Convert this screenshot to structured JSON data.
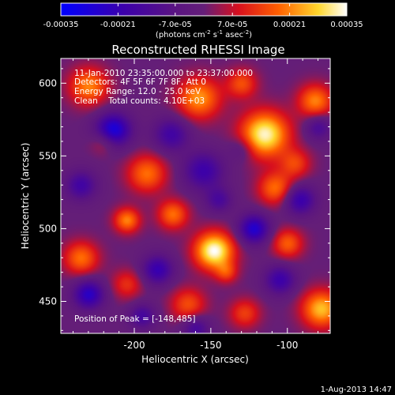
{
  "figure": {
    "title": "Reconstructed RHESSI Image",
    "footer_date": "1-Aug-2013 14:47"
  },
  "colorbar": {
    "ticks": [
      "-0.00035",
      "-0.00021",
      "-7.0e-05",
      "7.0e-05",
      "0.00021",
      "0.00035"
    ],
    "tick_values": [
      -0.00035,
      -0.00021,
      -7e-05,
      7e-05,
      0.00021,
      0.00035
    ],
    "range": [
      -0.00035,
      0.00035
    ],
    "unit_label": {
      "prefix": "(photons cm",
      "sup1": "-2",
      "mid1": " s",
      "sup2": "-1",
      "mid2": " asec",
      "sup3": "-2",
      "suffix": ")"
    },
    "colormap": "blue-purple-red-orange-yellow-white (RHESSI std)"
  },
  "annotations": {
    "time": "11-Jan-2010 23:35:00.000 to 23:37:00.000",
    "detectors": "Detectors: 4F 5F 6F 7F 8F, Att 0",
    "energy": "Energy Range: 12.0 - 25.0 keV",
    "method": "Clean    Total counts: 4.10E+03",
    "peak": "Position of Peak = [-148,485]"
  },
  "chart_data": {
    "type": "heatmap",
    "title": "Reconstructed RHESSI Image",
    "xlabel": "Heliocentric X (arcsec)",
    "ylabel": "Heliocentric Y (arcsec)",
    "xlim": [
      -248,
      -72
    ],
    "ylim": [
      428,
      617
    ],
    "x_ticks": [
      -200,
      -150,
      -100
    ],
    "y_ticks": [
      450,
      500,
      550,
      600
    ],
    "peak": {
      "x": -148,
      "y": 485
    },
    "blobs": [
      {
        "x": -148,
        "y": 485,
        "amp": 1.0,
        "sigma": 9
      },
      {
        "x": -115,
        "y": 565,
        "amp": 0.95,
        "sigma": 11
      },
      {
        "x": -158,
        "y": 590,
        "amp": 0.65,
        "sigma": 10
      },
      {
        "x": -230,
        "y": 598,
        "amp": 0.6,
        "sigma": 9
      },
      {
        "x": -82,
        "y": 588,
        "amp": 0.6,
        "sigma": 8
      },
      {
        "x": -108,
        "y": 528,
        "amp": 0.55,
        "sigma": 8
      },
      {
        "x": -192,
        "y": 538,
        "amp": 0.55,
        "sigma": 9
      },
      {
        "x": -175,
        "y": 510,
        "amp": 0.55,
        "sigma": 7
      },
      {
        "x": -205,
        "y": 506,
        "amp": 0.6,
        "sigma": 6
      },
      {
        "x": -78,
        "y": 445,
        "amp": 0.75,
        "sigma": 9
      },
      {
        "x": -235,
        "y": 480,
        "amp": 0.55,
        "sigma": 8
      },
      {
        "x": -100,
        "y": 490,
        "amp": 0.5,
        "sigma": 7
      },
      {
        "x": -165,
        "y": 448,
        "amp": 0.45,
        "sigma": 8
      },
      {
        "x": -205,
        "y": 462,
        "amp": 0.35,
        "sigma": 7
      },
      {
        "x": -128,
        "y": 442,
        "amp": 0.4,
        "sigma": 7
      },
      {
        "x": -95,
        "y": 545,
        "amp": 0.4,
        "sigma": 7
      },
      {
        "x": -220,
        "y": 560,
        "amp": 0.3,
        "sigma": 6
      },
      {
        "x": -130,
        "y": 600,
        "amp": 0.45,
        "sigma": 7
      },
      {
        "x": -140,
        "y": 470,
        "amp": 0.35,
        "sigma": 5
      },
      {
        "x": -214,
        "y": 568,
        "amp": -0.85,
        "sigma": 8
      },
      {
        "x": -155,
        "y": 540,
        "amp": -0.55,
        "sigma": 9
      },
      {
        "x": -122,
        "y": 500,
        "amp": -0.75,
        "sigma": 7
      },
      {
        "x": -230,
        "y": 455,
        "amp": -0.7,
        "sigma": 7
      },
      {
        "x": -92,
        "y": 520,
        "amp": -0.6,
        "sigma": 7
      },
      {
        "x": -105,
        "y": 465,
        "amp": -0.55,
        "sigma": 7
      },
      {
        "x": -185,
        "y": 472,
        "amp": -0.6,
        "sigma": 7
      },
      {
        "x": -176,
        "y": 565,
        "amp": -0.5,
        "sigma": 8
      },
      {
        "x": -145,
        "y": 520,
        "amp": -0.4,
        "sigma": 6
      },
      {
        "x": -235,
        "y": 530,
        "amp": -0.5,
        "sigma": 7
      },
      {
        "x": -80,
        "y": 570,
        "amp": -0.4,
        "sigma": 6
      },
      {
        "x": -130,
        "y": 555,
        "amp": -0.25,
        "sigma": 6
      },
      {
        "x": -160,
        "y": 432,
        "amp": -0.45,
        "sigma": 6
      },
      {
        "x": -195,
        "y": 440,
        "amp": -0.45,
        "sigma": 6
      }
    ]
  }
}
